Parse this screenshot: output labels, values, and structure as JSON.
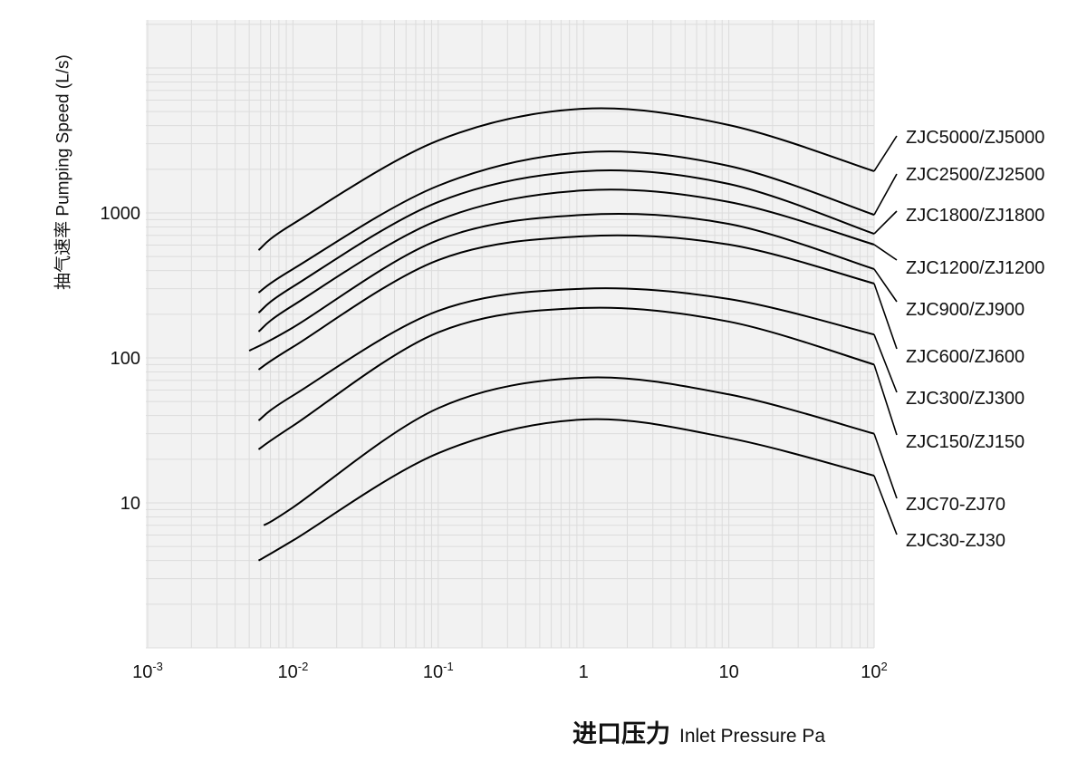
{
  "chart_data": {
    "type": "line",
    "xlabel": "进口压力 Inlet Pressure Pa",
    "xlabel_cn": "进口压力",
    "xlabel_en": "Inlet Pressure Pa",
    "ylabel": "抽气速率 Pumping Speed (L/s)",
    "ylabel_cn": "抽气速率",
    "ylabel_en": "Pumping Speed (L/s)",
    "x_scale": "log",
    "y_scale": "log",
    "xlim": [
      0.001,
      100
    ],
    "ylim": [
      1,
      21000
    ],
    "grid": true,
    "legend": "right, labels at curve ends",
    "colors": {
      "background": "#f2f2f2",
      "grid": "#dcdcdc",
      "line": "#000000"
    },
    "x_ticks": [
      {
        "value": 0.001,
        "base": "10",
        "exp": "-3"
      },
      {
        "value": 0.01,
        "base": "10",
        "exp": "-2"
      },
      {
        "value": 0.1,
        "base": "10",
        "exp": "-1"
      },
      {
        "value": 1,
        "base": "1",
        "exp": ""
      },
      {
        "value": 10,
        "base": "10",
        "exp": ""
      },
      {
        "value": 100,
        "base": "10",
        "exp": "2"
      }
    ],
    "y_ticks": [
      {
        "value": 10,
        "label": "10"
      },
      {
        "value": 100,
        "label": "100"
      },
      {
        "value": 1000,
        "label": "1000"
      }
    ],
    "series": [
      {
        "name": "ZJC5000/ZJ5000",
        "x": [
          0.0058,
          0.01,
          0.1,
          1,
          10,
          100
        ],
        "y": [
          554,
          840,
          3160,
          5230,
          4040,
          1940
        ]
      },
      {
        "name": "ZJC2500/ZJ2500",
        "x": [
          0.0058,
          0.01,
          0.1,
          1,
          10,
          100
        ],
        "y": [
          282,
          410,
          1540,
          2620,
          2110,
          970
        ]
      },
      {
        "name": "ZJC1800/ZJ1800",
        "x": [
          0.0058,
          0.01,
          0.1,
          1,
          10,
          100
        ],
        "y": [
          205,
          310,
          1190,
          1940,
          1585,
          718
        ]
      },
      {
        "name": "ZJC1200/ZJ1200",
        "x": [
          0.0058,
          0.01,
          0.1,
          1,
          10,
          100
        ],
        "y": [
          152,
          230,
          890,
          1430,
          1190,
          605
        ]
      },
      {
        "name": "ZJC900/ZJ900",
        "x": [
          0.005,
          0.01,
          0.1,
          1,
          10,
          100
        ],
        "y": [
          112,
          162,
          650,
          970,
          840,
          410
        ]
      },
      {
        "name": "ZJC600/ZJ600",
        "x": [
          0.0058,
          0.01,
          0.1,
          1,
          10,
          100
        ],
        "y": [
          83,
          119,
          473,
          690,
          605,
          326
        ]
      },
      {
        "name": "ZJC300/ZJ300",
        "x": [
          0.0058,
          0.01,
          0.1,
          1,
          10,
          100
        ],
        "y": [
          37,
          55,
          211,
          300,
          255,
          145
        ]
      },
      {
        "name": "ZJC150/ZJ150",
        "x": [
          0.0058,
          0.01,
          0.1,
          1,
          10,
          100
        ],
        "y": [
          23.4,
          34,
          150,
          221,
          178,
          90
        ]
      },
      {
        "name": "ZJC70-ZJ70",
        "x": [
          0.0063,
          0.01,
          0.1,
          1,
          10,
          100
        ],
        "y": [
          7.0,
          9.3,
          45,
          73,
          56,
          30
        ]
      },
      {
        "name": "ZJC30-ZJ30",
        "x": [
          0.0058,
          0.01,
          0.1,
          1,
          10,
          100
        ],
        "y": [
          4.0,
          5.5,
          22,
          37.6,
          28,
          15.4
        ]
      }
    ]
  }
}
